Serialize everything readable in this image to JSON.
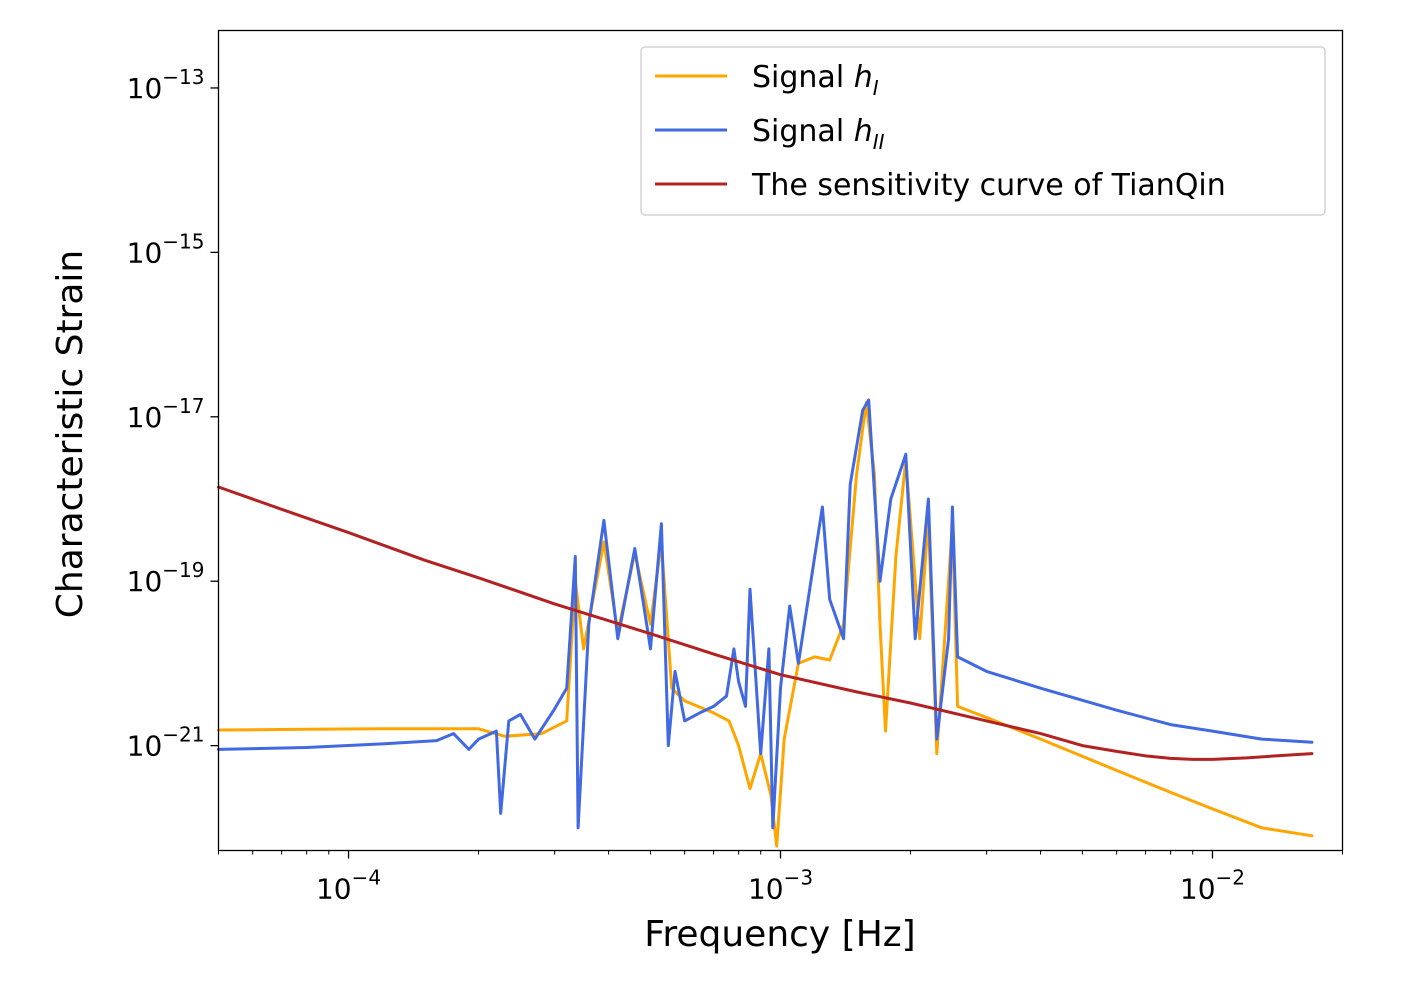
{
  "chart_data": {
    "type": "line",
    "xlabel": "Frequency [Hz]",
    "ylabel": "Characteristic Strain",
    "xscale": "log",
    "yscale": "log",
    "xlim": [
      5e-05,
      0.02
    ],
    "ylim": [
      5.3e-23,
      5e-13
    ],
    "grid": false,
    "legend_position": "top-right",
    "x_ticks": [
      {
        "value": 0.0001,
        "base": "10",
        "exp": "−4"
      },
      {
        "value": 0.001,
        "base": "10",
        "exp": "−3"
      },
      {
        "value": 0.01,
        "base": "10",
        "exp": "−2"
      }
    ],
    "y_ticks": [
      {
        "value": 1e-13,
        "base": "10",
        "exp": "−13"
      },
      {
        "value": 1e-15,
        "base": "10",
        "exp": "−15"
      },
      {
        "value": 1e-17,
        "base": "10",
        "exp": "−17"
      },
      {
        "value": 1e-19,
        "base": "10",
        "exp": "−19"
      },
      {
        "value": 1e-21,
        "base": "10",
        "exp": "−21"
      }
    ],
    "series": [
      {
        "name": "Signal h_I",
        "label_text": "Signal ",
        "label_math": "h",
        "label_sub": "I",
        "color": "#FFA500",
        "points": [
          [
            5e-05,
            1.55e-21
          ],
          [
            8e-05,
            1.58e-21
          ],
          [
            0.00012,
            1.6e-21
          ],
          [
            0.00016,
            1.6e-21
          ],
          [
            0.0002,
            1.6e-21
          ],
          [
            0.00023,
            1.3e-21
          ],
          [
            0.00028,
            1.4e-21
          ],
          [
            0.00032,
            2e-21
          ],
          [
            0.000335,
            1e-19
          ],
          [
            0.00035,
            1.5e-20
          ],
          [
            0.00039,
            3e-19
          ],
          [
            0.00042,
            2.4e-20
          ],
          [
            0.00046,
            2.2e-19
          ],
          [
            0.0005,
            3e-20
          ],
          [
            0.00053,
            3e-19
          ],
          [
            0.00056,
            5e-21
          ],
          [
            0.0006,
            3.5e-21
          ],
          [
            0.0007,
            2.5e-21
          ],
          [
            0.00076,
            2e-21
          ],
          [
            0.0008,
            1e-21
          ],
          [
            0.00085,
            3e-22
          ],
          [
            0.0009,
            8e-22
          ],
          [
            0.00095,
            2.5e-22
          ],
          [
            0.00098,
            6e-23
          ],
          [
            0.00102,
            1.2e-21
          ],
          [
            0.0011,
            1e-20
          ],
          [
            0.0012,
            1.2e-20
          ],
          [
            0.0013,
            1.1e-20
          ],
          [
            0.0014,
            3e-20
          ],
          [
            0.0015,
            2e-18
          ],
          [
            0.00158,
            1.5e-17
          ],
          [
            0.00165,
            2e-18
          ],
          [
            0.0017,
            3e-20
          ],
          [
            0.00175,
            1.5e-21
          ],
          [
            0.00185,
            2e-19
          ],
          [
            0.00195,
            3e-18
          ],
          [
            0.0021,
            2e-20
          ],
          [
            0.0022,
            6e-19
          ],
          [
            0.0023,
            8e-22
          ],
          [
            0.0024,
            2e-20
          ],
          [
            0.0025,
            5e-19
          ],
          [
            0.00257,
            3e-21
          ],
          [
            0.003,
            2.2e-21
          ],
          [
            0.004,
            1.2e-21
          ],
          [
            0.006,
            5e-22
          ],
          [
            0.008,
            2.7e-22
          ],
          [
            0.01,
            1.7e-22
          ],
          [
            0.013,
            1e-22
          ],
          [
            0.017,
            8e-23
          ]
        ]
      },
      {
        "name": "Signal h_II",
        "label_text": "Signal ",
        "label_math": "h",
        "label_sub": "II",
        "color": "#4169E1",
        "points": [
          [
            5e-05,
            9e-22
          ],
          [
            8e-05,
            9.5e-22
          ],
          [
            0.00012,
            1.05e-21
          ],
          [
            0.00016,
            1.15e-21
          ],
          [
            0.000175,
            1.4e-21
          ],
          [
            0.00019,
            9e-22
          ],
          [
            0.0002,
            1.2e-21
          ],
          [
            0.00022,
            1.5e-21
          ],
          [
            0.000225,
            1.5e-22
          ],
          [
            0.000235,
            2e-21
          ],
          [
            0.00025,
            2.4e-21
          ],
          [
            0.00027,
            1.2e-21
          ],
          [
            0.0003,
            2.8e-21
          ],
          [
            0.00032,
            5e-21
          ],
          [
            0.000335,
            2e-19
          ],
          [
            0.00034,
            1e-22
          ],
          [
            0.00036,
            3e-20
          ],
          [
            0.00039,
            5.5e-19
          ],
          [
            0.00042,
            2e-20
          ],
          [
            0.00046,
            2.5e-19
          ],
          [
            0.0005,
            1.5e-20
          ],
          [
            0.00053,
            5e-19
          ],
          [
            0.00055,
            1e-21
          ],
          [
            0.00057,
            8e-21
          ],
          [
            0.0006,
            2e-21
          ],
          [
            0.00065,
            2.5e-21
          ],
          [
            0.0007,
            3e-21
          ],
          [
            0.00075,
            4e-21
          ],
          [
            0.00078,
            1.5e-20
          ],
          [
            0.0008,
            6e-21
          ],
          [
            0.00083,
            3e-21
          ],
          [
            0.00085,
            8e-20
          ],
          [
            0.0009,
            8e-22
          ],
          [
            0.00094,
            1.5e-20
          ],
          [
            0.00096,
            1e-22
          ],
          [
            0.001,
            5e-21
          ],
          [
            0.00105,
            5e-20
          ],
          [
            0.0011,
            1e-20
          ],
          [
            0.0012,
            2e-19
          ],
          [
            0.00125,
            8e-19
          ],
          [
            0.0013,
            6e-20
          ],
          [
            0.0014,
            2e-20
          ],
          [
            0.00145,
            1.5e-18
          ],
          [
            0.00155,
            1.2e-17
          ],
          [
            0.0016,
            1.6e-17
          ],
          [
            0.0017,
            1e-19
          ],
          [
            0.0018,
            1e-18
          ],
          [
            0.00195,
            3.5e-18
          ],
          [
            0.00205,
            2e-20
          ],
          [
            0.0022,
            1e-18
          ],
          [
            0.0023,
            1.2e-21
          ],
          [
            0.00245,
            2e-20
          ],
          [
            0.0025,
            8e-19
          ],
          [
            0.00257,
            1.2e-20
          ],
          [
            0.003,
            8e-21
          ],
          [
            0.004,
            5e-21
          ],
          [
            0.006,
            2.7e-21
          ],
          [
            0.008,
            1.8e-21
          ],
          [
            0.01,
            1.5e-21
          ],
          [
            0.013,
            1.2e-21
          ],
          [
            0.017,
            1.1e-21
          ]
        ]
      },
      {
        "name": "The sensitivity curve of TianQin",
        "label_text": "The sensitivity curve of TianQin",
        "label_math": "",
        "label_sub": "",
        "color": "#B22222",
        "points": [
          [
            5e-05,
            1.4e-18
          ],
          [
            7e-05,
            7.5e-19
          ],
          [
            0.0001,
            3.9e-19
          ],
          [
            0.00015,
            1.8e-19
          ],
          [
            0.0002,
            1.1e-19
          ],
          [
            0.0003,
            5.3e-20
          ],
          [
            0.0005,
            2.3e-20
          ],
          [
            0.0007,
            1.3e-20
          ],
          [
            0.001,
            7.3e-21
          ],
          [
            0.0015,
            4.5e-21
          ],
          [
            0.002,
            3.3e-21
          ],
          [
            0.003,
            2e-21
          ],
          [
            0.004,
            1.4e-21
          ],
          [
            0.005,
            1e-21
          ],
          [
            0.006,
            8.5e-22
          ],
          [
            0.007,
            7.5e-22
          ],
          [
            0.008,
            7e-22
          ],
          [
            0.009,
            6.8e-22
          ],
          [
            0.01,
            6.8e-22
          ],
          [
            0.012,
            7.1e-22
          ],
          [
            0.014,
            7.5e-22
          ],
          [
            0.017,
            8e-22
          ]
        ]
      }
    ]
  }
}
